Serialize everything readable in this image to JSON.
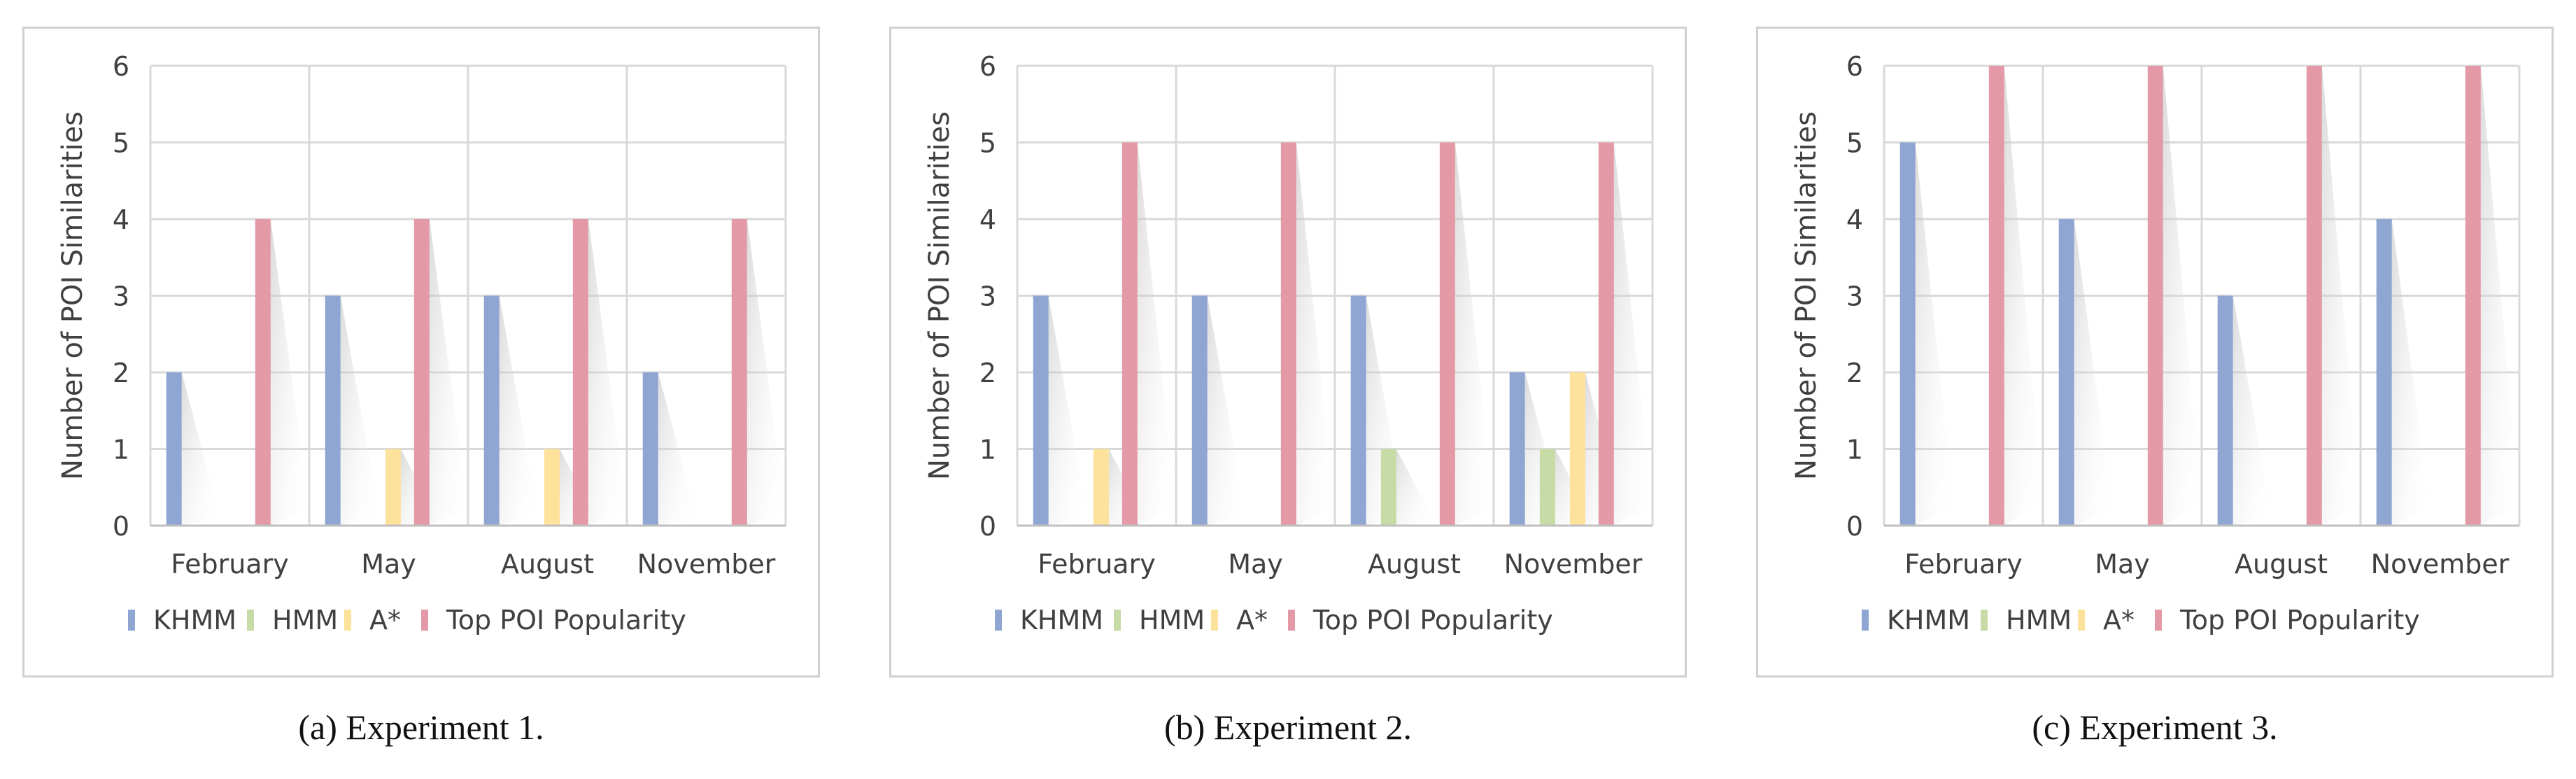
{
  "figure": {
    "legend_labels": [
      "KHMM",
      "HMM",
      "A*",
      "Top POI Popularity"
    ]
  },
  "colors": {
    "KHMM": "#8fa6d2",
    "HMM": "#c6dba6",
    "A*": "#fce29a",
    "Top POI Popularity": "#e49aa6"
  },
  "chart_data": [
    {
      "type": "bar",
      "caption": "(a) Experiment 1.",
      "ylabel": "Number of POI Similarities",
      "ylim": [
        0,
        6
      ],
      "yticks": [
        "0",
        "1",
        "2",
        "3",
        "4",
        "5",
        "6"
      ],
      "categories": [
        "February",
        "May",
        "August",
        "November"
      ],
      "legend_position": "bottom",
      "grid": true,
      "series": [
        {
          "name": "KHMM",
          "values": [
            2,
            3,
            3,
            2
          ]
        },
        {
          "name": "HMM",
          "values": [
            0,
            0,
            0,
            0
          ]
        },
        {
          "name": "A*",
          "values": [
            0,
            1,
            1,
            0
          ]
        },
        {
          "name": "Top POI Popularity",
          "values": [
            4,
            4,
            4,
            4
          ]
        }
      ]
    },
    {
      "type": "bar",
      "caption": "(b) Experiment 2.",
      "ylabel": "Number of POI Similarities",
      "ylim": [
        0,
        6
      ],
      "yticks": [
        "0",
        "1",
        "2",
        "3",
        "4",
        "5",
        "6"
      ],
      "categories": [
        "February",
        "May",
        "August",
        "November"
      ],
      "legend_position": "bottom",
      "grid": true,
      "series": [
        {
          "name": "KHMM",
          "values": [
            3,
            3,
            3,
            2
          ]
        },
        {
          "name": "HMM",
          "values": [
            0,
            0,
            1,
            1
          ]
        },
        {
          "name": "A*",
          "values": [
            1,
            0,
            0,
            2
          ]
        },
        {
          "name": "Top POI Popularity",
          "values": [
            5,
            5,
            5,
            5
          ]
        }
      ]
    },
    {
      "type": "bar",
      "caption": "(c) Experiment 3.",
      "ylabel": "Number of POI Similarities",
      "ylim": [
        0,
        6
      ],
      "yticks": [
        "0",
        "1",
        "2",
        "3",
        "4",
        "5",
        "6"
      ],
      "categories": [
        "February",
        "May",
        "August",
        "November"
      ],
      "legend_position": "bottom",
      "grid": true,
      "series": [
        {
          "name": "KHMM",
          "values": [
            5,
            4,
            3,
            4
          ]
        },
        {
          "name": "HMM",
          "values": [
            0,
            0,
            0,
            0
          ]
        },
        {
          "name": "A*",
          "values": [
            0,
            0,
            0,
            0
          ]
        },
        {
          "name": "Top POI Popularity",
          "values": [
            6,
            6,
            6,
            6
          ]
        }
      ]
    }
  ]
}
